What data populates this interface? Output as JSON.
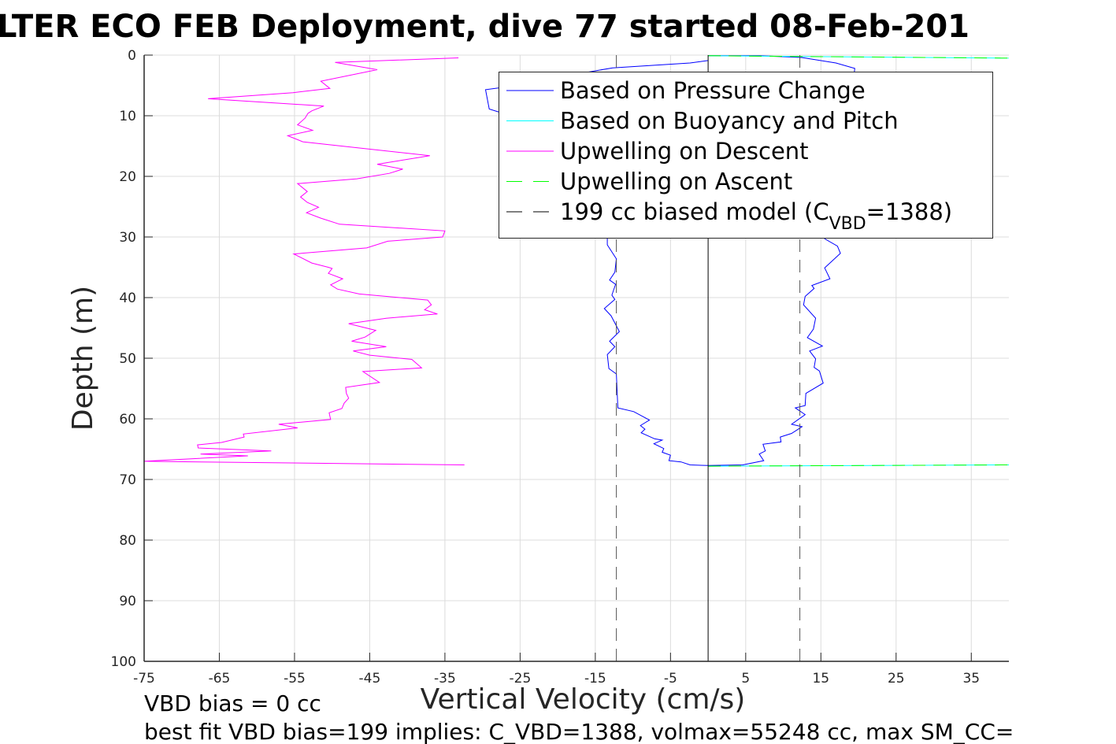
{
  "chart_data": {
    "type": "line",
    "title": "LTER ECO FEB Deployment, dive 77 started 08-Feb-201",
    "xlabel": "Vertical Velocity (cm/s)",
    "ylabel": "Depth (m)",
    "xlim": [
      -75,
      40
    ],
    "ylim": [
      100,
      0
    ],
    "grid": true,
    "xticks": [
      -75,
      -65,
      -55,
      -45,
      -35,
      -25,
      -15,
      -5,
      5,
      15,
      25,
      35
    ],
    "yticks": [
      0,
      10,
      20,
      30,
      40,
      50,
      60,
      70,
      80,
      90,
      100
    ],
    "legend_position": "top-right",
    "legend": [
      {
        "label": "Based on Pressure Change",
        "color": "#0000ff",
        "style": "solid"
      },
      {
        "label": "Based on Buoyancy and Pitch",
        "color": "#00ffff",
        "style": "solid"
      },
      {
        "label": "Upwelling on Descent",
        "color": "#ff00ff",
        "style": "solid"
      },
      {
        "label": "Upwelling on Ascent",
        "color": "#00ff00",
        "style": "dashed"
      },
      {
        "label_main": "199 cc biased model (C",
        "label_sub": "VBD",
        "label_end": "=1388)",
        "color": "#000000",
        "style": "dashed"
      }
    ],
    "series": [
      {
        "name": "Upwelling on Descent",
        "color": "#ff00ff",
        "points": [
          [
            -33.2,
            0.45
          ],
          [
            -49.6,
            1.2
          ],
          [
            -44.0,
            2.4
          ],
          [
            -51.5,
            4.3
          ],
          [
            -50.3,
            5.5
          ],
          [
            -55.2,
            6.2
          ],
          [
            -66.5,
            7.2
          ],
          [
            -51.1,
            8.4
          ],
          [
            -52.7,
            9.2
          ],
          [
            -53.2,
            9.6
          ],
          [
            -53.6,
            10.4
          ],
          [
            -54.6,
            11.5
          ],
          [
            -52.6,
            12.4
          ],
          [
            -55.9,
            13.3
          ],
          [
            -53.9,
            14.3
          ],
          [
            -37.0,
            16.6
          ],
          [
            -44.0,
            18.0
          ],
          [
            -40.6,
            18.8
          ],
          [
            -42.4,
            19.5
          ],
          [
            -46.7,
            20.4
          ],
          [
            -54.6,
            21.2
          ],
          [
            -53.3,
            22.5
          ],
          [
            -54.2,
            23.4
          ],
          [
            -53.3,
            24.3
          ],
          [
            -51.8,
            25.1
          ],
          [
            -53.4,
            26.0
          ],
          [
            -51.5,
            26.9
          ],
          [
            -49.0,
            27.9
          ],
          [
            -35.0,
            29.0
          ],
          [
            -35.3,
            30.0
          ],
          [
            -42.6,
            30.7
          ],
          [
            -45.4,
            31.8
          ],
          [
            -55.1,
            32.8
          ],
          [
            -52.7,
            34.3
          ],
          [
            -50.5,
            35.0
          ],
          [
            -50.0,
            35.2
          ],
          [
            -50.5,
            36.0
          ],
          [
            -48.6,
            36.9
          ],
          [
            -50.2,
            37.9
          ],
          [
            -49.3,
            38.6
          ],
          [
            -46.4,
            39.4
          ],
          [
            -37.3,
            40.4
          ],
          [
            -36.8,
            41.2
          ],
          [
            -37.7,
            42.0
          ],
          [
            -36.0,
            42.7
          ],
          [
            -42.8,
            43.4
          ],
          [
            -47.8,
            44.3
          ],
          [
            -44.2,
            45.4
          ],
          [
            -45.6,
            46.5
          ],
          [
            -47.4,
            47.2
          ],
          [
            -42.8,
            48.1
          ],
          [
            -47.2,
            48.8
          ],
          [
            -45.0,
            49.5
          ],
          [
            -39.4,
            50.2
          ],
          [
            -38.1,
            51.6
          ],
          [
            -45.9,
            52.2
          ],
          [
            -43.7,
            54.0
          ],
          [
            -48.2,
            54.8
          ],
          [
            -48.1,
            55.8
          ],
          [
            -47.8,
            56.6
          ],
          [
            -48.4,
            57.4
          ],
          [
            -48.7,
            58.3
          ],
          [
            -50.4,
            59.0
          ],
          [
            -50.2,
            60.1
          ],
          [
            -57.1,
            60.9
          ],
          [
            -54.6,
            61.5
          ],
          [
            -61.8,
            62.5
          ],
          [
            -61.7,
            63.0
          ],
          [
            -64.7,
            63.9
          ],
          [
            -67.9,
            64.3
          ],
          [
            -67.8,
            64.8
          ],
          [
            -58.1,
            65.3
          ],
          [
            -67.5,
            65.8
          ],
          [
            -61.2,
            66.1
          ],
          [
            -75.0,
            67.0
          ],
          [
            -32.4,
            67.6
          ]
        ]
      },
      {
        "name": "Based on Pressure Change (descent)",
        "color": "#0000ff",
        "points": [
          [
            0,
            0.9
          ],
          [
            -2.4,
            1.3
          ],
          [
            -12.7,
            2.1
          ],
          [
            -15.0,
            2.6
          ],
          [
            -27.8,
            5.4
          ],
          [
            -29.6,
            5.7
          ],
          [
            -29.1,
            8.9
          ],
          [
            -27.8,
            9.4
          ],
          [
            -20.0,
            12.0
          ],
          [
            -14.0,
            20.0
          ],
          [
            -13.4,
            30.3
          ],
          [
            -13.4,
            31.3
          ],
          [
            -12.2,
            33.6
          ],
          [
            -12.4,
            35.8
          ],
          [
            -13.1,
            37.1
          ],
          [
            -12.3,
            37.8
          ],
          [
            -12.8,
            39.6
          ],
          [
            -12.4,
            40.3
          ],
          [
            -13.8,
            41.8
          ],
          [
            -12.9,
            43.0
          ],
          [
            -11.8,
            45.6
          ],
          [
            -13.1,
            47.2
          ],
          [
            -12.4,
            48.1
          ],
          [
            -13.4,
            49.4
          ],
          [
            -13.2,
            51.7
          ],
          [
            -12.2,
            52.6
          ],
          [
            -12.1,
            55.5
          ],
          [
            -12.0,
            58.2
          ],
          [
            -9.9,
            58.8
          ],
          [
            -7.8,
            60.2
          ],
          [
            -9.0,
            61.1
          ],
          [
            -8.4,
            61.7
          ],
          [
            -8.9,
            62.3
          ],
          [
            -7.1,
            63.3
          ],
          [
            -6.1,
            63.5
          ],
          [
            -7.2,
            64.1
          ],
          [
            -5.9,
            64.9
          ],
          [
            -6.1,
            65.5
          ],
          [
            -5.0,
            66.0
          ],
          [
            -5.2,
            66.9
          ],
          [
            -3.6,
            67.1
          ],
          [
            -2.4,
            67.6
          ],
          [
            0,
            67.7
          ]
        ]
      },
      {
        "name": "Based on Pressure Change (ascent)",
        "color": "#0000ff",
        "points": [
          [
            0,
            67.7
          ],
          [
            4.6,
            67.6
          ],
          [
            7.4,
            66.9
          ],
          [
            6.8,
            65.8
          ],
          [
            7.6,
            65.3
          ],
          [
            7.3,
            64.2
          ],
          [
            9.7,
            63.8
          ],
          [
            9.6,
            63.0
          ],
          [
            11.1,
            62.4
          ],
          [
            12.5,
            61.3
          ],
          [
            11.1,
            60.9
          ],
          [
            12.9,
            59.3
          ],
          [
            11.6,
            58.2
          ],
          [
            12.9,
            57.8
          ],
          [
            13.0,
            55.8
          ],
          [
            15.3,
            54.1
          ],
          [
            14.8,
            52.1
          ],
          [
            14.1,
            51.5
          ],
          [
            14.3,
            50.1
          ],
          [
            13.5,
            48.8
          ],
          [
            15.2,
            48.0
          ],
          [
            13.2,
            46.6
          ],
          [
            14.0,
            45.2
          ],
          [
            14.3,
            43.4
          ],
          [
            12.7,
            41.2
          ],
          [
            12.9,
            39.8
          ],
          [
            14.1,
            38.5
          ],
          [
            13.8,
            38.0
          ],
          [
            16.2,
            36.9
          ],
          [
            15.5,
            35.1
          ],
          [
            17.6,
            32.7
          ],
          [
            17.2,
            31.5
          ],
          [
            15.5,
            30.3
          ],
          [
            17.0,
            20.0
          ],
          [
            19.0,
            8.0
          ],
          [
            19.5,
            2.2
          ],
          [
            17.0,
            1.3
          ],
          [
            12.5,
            0.4
          ],
          [
            6.9,
            0.1
          ],
          [
            0,
            0.1
          ]
        ]
      },
      {
        "name": "Based on Buoyancy and Pitch (top)",
        "color": "#00ffff",
        "points": [
          [
            0,
            0.1
          ],
          [
            40,
            0.5
          ]
        ]
      },
      {
        "name": "Based on Buoyancy and Pitch (bottom)",
        "color": "#00ffff",
        "points": [
          [
            0,
            67.8
          ],
          [
            40,
            67.6
          ]
        ]
      },
      {
        "name": "Upwelling on Ascent (top)",
        "color": "#00ff00",
        "dashed": true,
        "points": [
          [
            0,
            0.1
          ],
          [
            40,
            0.5
          ]
        ]
      },
      {
        "name": "Upwelling on Ascent (bottom)",
        "color": "#00ff00",
        "dashed": true,
        "points": [
          [
            0,
            67.8
          ],
          [
            40,
            67.6
          ]
        ]
      },
      {
        "name": "Zero line",
        "color": "#000000",
        "points": [
          [
            0,
            0
          ],
          [
            0,
            100
          ]
        ]
      },
      {
        "name": "199 cc biased model (left)",
        "color": "#555555",
        "dashed": true,
        "points": [
          [
            -12.2,
            0
          ],
          [
            -12.2,
            100
          ]
        ]
      },
      {
        "name": "199 cc biased model (right)",
        "color": "#555555",
        "dashed": true,
        "points": [
          [
            12.2,
            0
          ],
          [
            12.2,
            100
          ]
        ]
      }
    ]
  },
  "footer": {
    "line1": "VBD bias = 0 cc",
    "line2": "best fit VBD bias=199 implies: C_VBD=1388, volmax=55248 cc, max SM_CC="
  }
}
